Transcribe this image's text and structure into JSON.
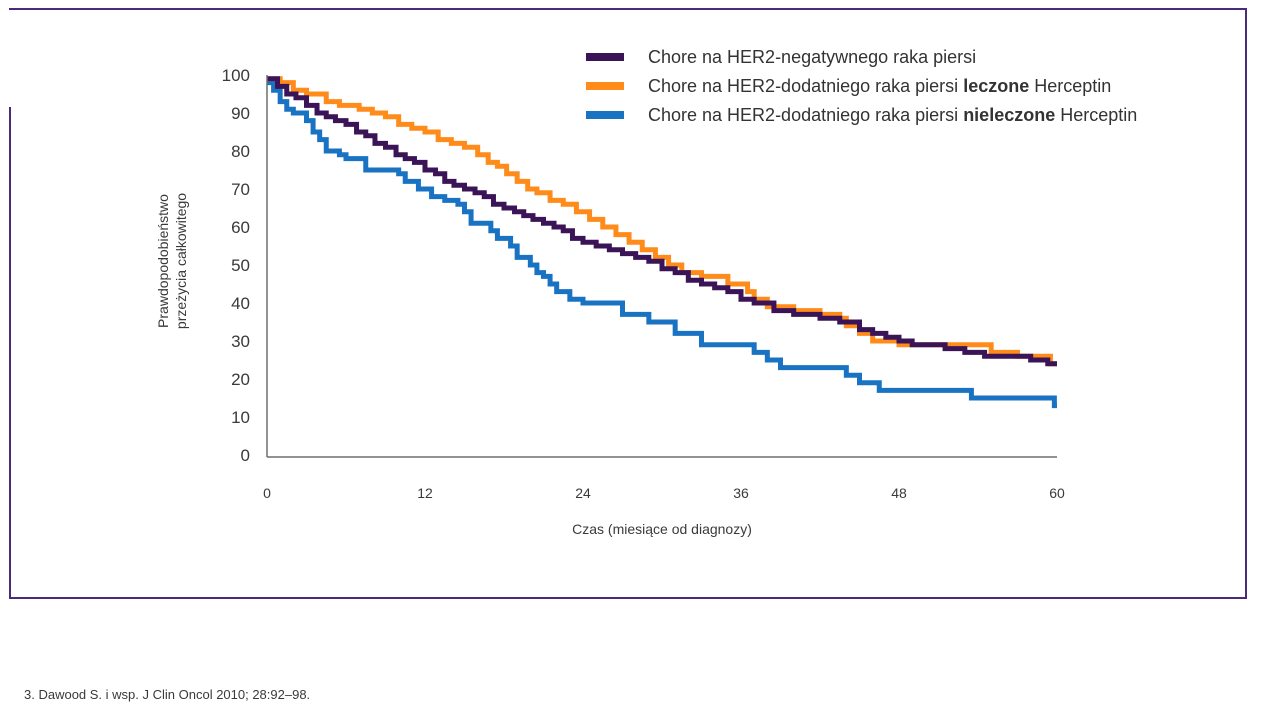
{
  "chart_data": {
    "type": "line",
    "step": true,
    "title": "",
    "xlabel": "Czas (miesiące od diagnozy)",
    "ylabel_lines": [
      "Prawdopodobieństwo",
      "przeżycia całkowitego"
    ],
    "xlim": [
      0,
      60
    ],
    "ylim": [
      0,
      100
    ],
    "xticks": [
      "0",
      "12",
      "24",
      "36",
      "48",
      "60"
    ],
    "xtick_values": [
      0,
      12,
      24,
      36,
      48,
      60
    ],
    "yticks": [
      "0",
      "10",
      "20",
      "30",
      "40",
      "50",
      "60",
      "70",
      "80",
      "90",
      "100"
    ],
    "ytick_values": [
      0,
      10,
      20,
      30,
      40,
      50,
      60,
      70,
      80,
      90,
      100
    ],
    "grid": false,
    "legend_position": "top-right",
    "series": [
      {
        "name": "Chore na HER2-negatywnego raka piersi",
        "legend_parts": [
          {
            "text": "Chore na HER2-negatywnego raka piersi",
            "bold": false
          }
        ],
        "color": "#3b1457",
        "x": [
          0,
          0.8,
          1.5,
          2.2,
          3.0,
          3.8,
          4.5,
          5.2,
          6.0,
          6.8,
          7.5,
          8.2,
          9.0,
          9.8,
          10.5,
          11.2,
          12.0,
          12.8,
          13.5,
          14.2,
          15.0,
          15.8,
          16.5,
          17.2,
          18.0,
          18.8,
          19.5,
          20.2,
          21.0,
          21.8,
          22.5,
          23.2,
          24.0,
          25.0,
          26.0,
          27.0,
          28.0,
          29.0,
          30.0,
          31.0,
          32.0,
          33.0,
          34.0,
          35.0,
          36.0,
          37.0,
          38.5,
          40.0,
          42.0,
          43.5,
          45.0,
          46.0,
          47.0,
          48.0,
          49.0,
          50.0,
          51.5,
          53.0,
          54.5,
          56.0,
          58.0,
          59.3,
          60
        ],
        "values": [
          99,
          97,
          95,
          94,
          92,
          90,
          89,
          88,
          87,
          85,
          84,
          82,
          81,
          79,
          78,
          77,
          75,
          74,
          72,
          71,
          70,
          69,
          68,
          66,
          65,
          64,
          63,
          62,
          61,
          60,
          59,
          57,
          56,
          55,
          54,
          53,
          52,
          51,
          49,
          48,
          46,
          45,
          44,
          43,
          41,
          40,
          38,
          37,
          36,
          35,
          33,
          32,
          31,
          30,
          29,
          29,
          28,
          27,
          26,
          26,
          25,
          24,
          24
        ]
      },
      {
        "name": "Chore na HER2-dodatniego raka piersi leczone Herceptin",
        "legend_parts": [
          {
            "text": "Chore na HER2-dodatniego raka piersi ",
            "bold": false
          },
          {
            "text": "leczone",
            "bold": true
          },
          {
            "text": " Herceptin",
            "bold": false
          }
        ],
        "color": "#ff8c1a",
        "x": [
          0,
          1.0,
          2.0,
          3.0,
          4.5,
          5.5,
          7.0,
          8.0,
          9.0,
          10.0,
          11.0,
          12.0,
          13.0,
          14.0,
          15.0,
          16.0,
          16.8,
          17.5,
          18.2,
          19.0,
          19.8,
          20.5,
          21.5,
          22.5,
          23.5,
          24.5,
          25.5,
          26.5,
          27.5,
          28.5,
          29.5,
          30.5,
          31.5,
          33.0,
          35.0,
          36.5,
          37.0,
          38.0,
          40.0,
          42.0,
          43.5,
          44.0,
          45.0,
          46.0,
          48.0,
          50.0,
          52.0,
          53.5,
          55.0,
          57.0,
          59.5,
          60
        ],
        "values": [
          99,
          98,
          96,
          95,
          93,
          92,
          91,
          90,
          89,
          87,
          86,
          85,
          83,
          82,
          81,
          79,
          77,
          76,
          74,
          72,
          70,
          69,
          67,
          66,
          64,
          62,
          60,
          58,
          56,
          54,
          52,
          50,
          48,
          47,
          45,
          43,
          41,
          39,
          38,
          37,
          36,
          34,
          32,
          30,
          29,
          29,
          29,
          29,
          27,
          26,
          24,
          24
        ]
      },
      {
        "name": "Chore na HER2-dodatniego raka piersi nieleczone Herceptin",
        "legend_parts": [
          {
            "text": "Chore na HER2-dodatniego raka piersi ",
            "bold": false
          },
          {
            "text": "nieleczone",
            "bold": true
          },
          {
            "text": " Herceptin",
            "bold": false
          }
        ],
        "color": "#1a73c2",
        "x": [
          0,
          0.5,
          1.0,
          1.5,
          2.0,
          3.0,
          3.5,
          4.0,
          4.5,
          5.5,
          6.0,
          7.5,
          9.0,
          10.0,
          10.5,
          11.5,
          12.5,
          13.5,
          14.5,
          15.0,
          15.5,
          17.0,
          17.5,
          18.5,
          19.0,
          20.0,
          20.5,
          21.0,
          21.5,
          22.0,
          23.0,
          24.0,
          27.0,
          29.0,
          31.0,
          33.0,
          37.0,
          38.0,
          39.0,
          44.0,
          45.0,
          46.5,
          53.5,
          59.8,
          60
        ],
        "values": [
          98,
          96,
          93,
          91,
          90,
          88,
          85,
          83,
          80,
          79,
          78,
          75,
          75,
          74,
          72,
          70,
          68,
          67,
          66,
          64,
          61,
          59,
          57,
          55,
          52,
          50,
          48,
          47,
          45,
          43,
          41,
          40,
          37,
          35,
          32,
          29,
          27,
          25,
          23,
          21,
          19,
          17,
          15,
          13,
          13
        ]
      }
    ]
  },
  "footnote": "3. Dawood S. i wsp. J Clin Oncol 2010; 28:92–98."
}
